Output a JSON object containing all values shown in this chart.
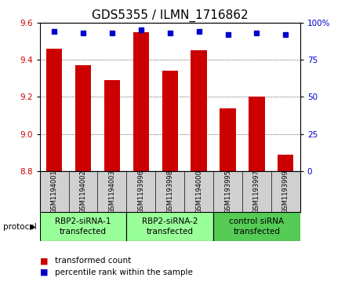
{
  "title": "GDS5355 / ILMN_1716862",
  "samples": [
    "GSM1194001",
    "GSM1194002",
    "GSM1194003",
    "GSM1193996",
    "GSM1193998",
    "GSM1194000",
    "GSM1193995",
    "GSM1193997",
    "GSM1193999"
  ],
  "bar_values": [
    9.46,
    9.37,
    9.29,
    9.55,
    9.34,
    9.45,
    9.14,
    9.2,
    8.89
  ],
  "percentile_values": [
    94,
    93,
    93,
    95,
    93,
    94,
    92,
    93,
    92
  ],
  "ylim": [
    8.8,
    9.6
  ],
  "yticks": [
    8.8,
    9.0,
    9.2,
    9.4,
    9.6
  ],
  "right_yticks": [
    0,
    25,
    50,
    75,
    100
  ],
  "right_ylim": [
    0,
    100
  ],
  "bar_color": "#cc0000",
  "dot_color": "#0000cc",
  "groups": [
    {
      "label": "RBP2-siRNA-1\ntransfected",
      "indices": [
        0,
        1,
        2
      ],
      "color": "#99ff99"
    },
    {
      "label": "RBP2-siRNA-2\ntransfected",
      "indices": [
        3,
        4,
        5
      ],
      "color": "#99ff99"
    },
    {
      "label": "control siRNA\ntransfected",
      "indices": [
        6,
        7,
        8
      ],
      "color": "#66cc66"
    }
  ],
  "protocol_label": "protocol",
  "legend_bar_label": "transformed count",
  "legend_dot_label": "percentile rank within the sample",
  "title_fontsize": 11,
  "tick_fontsize": 7.5,
  "sample_fontsize": 6.0,
  "group_fontsize": 7.5,
  "bar_width": 0.55,
  "background_color": "#ffffff",
  "sample_box_color": "#d0d0d0",
  "group1_color": "#99ff99",
  "group2_color": "#55cc55"
}
